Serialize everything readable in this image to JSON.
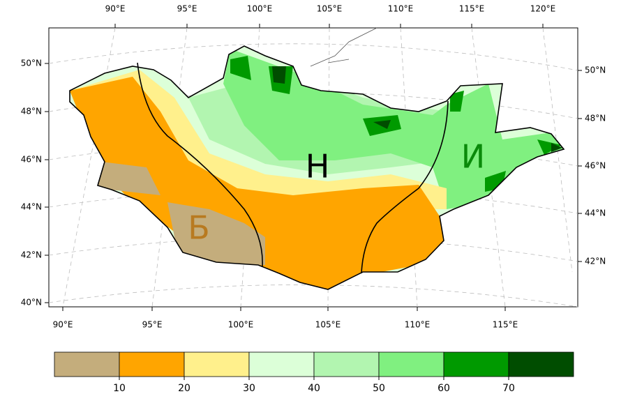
{
  "map": {
    "top_axis_labels": [
      "90°E",
      "95°E",
      "100°E",
      "105°E",
      "110°E",
      "115°E",
      "120°E"
    ],
    "bottom_axis_labels": [
      "90°E",
      "95°E",
      "100°E",
      "105°E",
      "110°E",
      "115°E"
    ],
    "left_axis_labels": [
      "50°N",
      "48°N",
      "46°N",
      "44°N",
      "42°N",
      "40°N"
    ],
    "right_axis_labels": [
      "50°N",
      "48°N",
      "46°N",
      "44°N",
      "42°N"
    ],
    "region_labels": [
      "Б",
      "Н",
      "И"
    ],
    "colorbar": {
      "colors": [
        "#c4ad7c",
        "#ffa500",
        "#fff08c",
        "#dcffd8",
        "#b2f5b0",
        "#80f080",
        "#009a00",
        "#004d00"
      ],
      "ticks": [
        10,
        20,
        30,
        40,
        50,
        60,
        70
      ]
    }
  }
}
